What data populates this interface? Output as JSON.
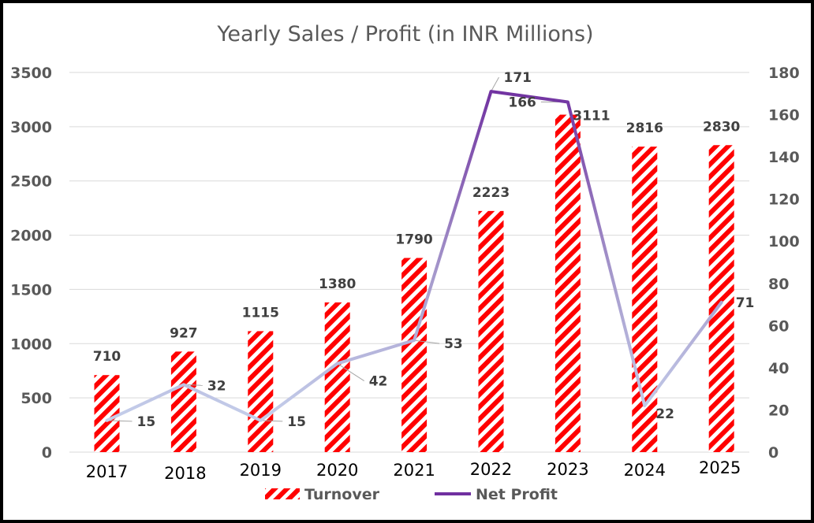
{
  "chart_data": {
    "type": "bar",
    "title": "Yearly Sales / Profit (in INR Millions)",
    "categories": [
      "2017",
      "2018",
      "2019",
      "2020",
      "2021",
      "2022",
      "2023",
      "2024",
      "2025"
    ],
    "series": [
      {
        "name": "Turnover",
        "type": "bar",
        "axis": "left",
        "values": [
          710,
          927,
          1115,
          1380,
          1790,
          2223,
          3111,
          2816,
          2830
        ],
        "labels": [
          "710",
          "927",
          "1115",
          "1380",
          "1790",
          "2223",
          "3111",
          "2816",
          "2830"
        ],
        "color": "#ff0000",
        "pattern": "diagonal-stripes"
      },
      {
        "name": "Net Profit",
        "type": "line",
        "axis": "right",
        "values": [
          15,
          32,
          15,
          42,
          53,
          171,
          166,
          22,
          71
        ],
        "labels": [
          "15",
          "32",
          "15",
          "42",
          "53",
          "171",
          "166",
          "22",
          "71"
        ],
        "color_start": "#c9d6ef",
        "color_end": "#7030a0"
      }
    ],
    "y_left": {
      "min": 0,
      "max": 3500,
      "ticks": [
        "0",
        "500",
        "1000",
        "1500",
        "2000",
        "2500",
        "3000",
        "3500"
      ]
    },
    "y_right": {
      "min": 0,
      "max": 180,
      "ticks": [
        "0",
        "20",
        "40",
        "60",
        "80",
        "100",
        "120",
        "140",
        "160",
        "180"
      ]
    },
    "grid": true,
    "legend": "bottom"
  }
}
